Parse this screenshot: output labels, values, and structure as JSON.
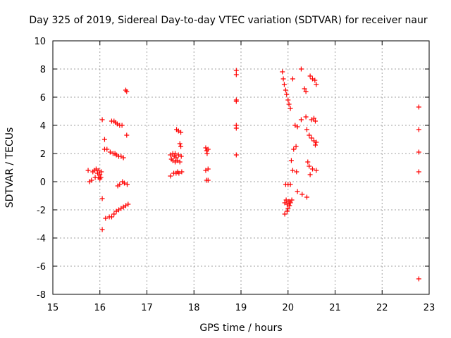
{
  "chart_data": {
    "type": "scatter",
    "title": "Day 325 of 2019, Sidereal Day-to-day VTEC variation (SDTVAR) for receiver naur",
    "xlabel": "GPS time / hours",
    "ylabel": "SDTVAR / TECUs",
    "xlim": [
      15,
      23
    ],
    "ylim": [
      -8,
      10
    ],
    "xticks": [
      "15",
      "16",
      "17",
      "18",
      "19",
      "20",
      "21",
      "22",
      "23"
    ],
    "yticks": [
      "-8",
      "-6",
      "-4",
      "-2",
      "0",
      "2",
      "4",
      "6",
      "8",
      "10"
    ],
    "grid": true,
    "marker": "+",
    "color": "#ff0000",
    "series": [
      {
        "name": "SDTVAR",
        "points": [
          [
            15.75,
            0.8
          ],
          [
            15.78,
            0.0
          ],
          [
            15.82,
            0.1
          ],
          [
            15.85,
            0.7
          ],
          [
            15.88,
            0.8
          ],
          [
            15.9,
            0.3
          ],
          [
            15.92,
            0.9
          ],
          [
            15.95,
            0.6
          ],
          [
            15.97,
            0.3
          ],
          [
            15.98,
            0.8
          ],
          [
            16.0,
            0.5
          ],
          [
            16.0,
            0.2
          ],
          [
            16.02,
            0.3
          ],
          [
            16.03,
            0.7
          ],
          [
            16.05,
            4.4
          ],
          [
            16.05,
            -1.2
          ],
          [
            16.05,
            -3.4
          ],
          [
            16.1,
            3.0
          ],
          [
            16.1,
            2.3
          ],
          [
            16.12,
            -2.6
          ],
          [
            16.15,
            2.3
          ],
          [
            16.2,
            -2.5
          ],
          [
            16.22,
            2.1
          ],
          [
            16.25,
            4.3
          ],
          [
            16.25,
            -2.5
          ],
          [
            16.28,
            2.0
          ],
          [
            16.3,
            4.3
          ],
          [
            16.3,
            -2.3
          ],
          [
            16.32,
            2.0
          ],
          [
            16.33,
            4.2
          ],
          [
            16.35,
            1.9
          ],
          [
            16.35,
            -2.1
          ],
          [
            16.37,
            4.1
          ],
          [
            16.38,
            -0.3
          ],
          [
            16.4,
            -2.0
          ],
          [
            16.4,
            1.8
          ],
          [
            16.42,
            4.0
          ],
          [
            16.42,
            -0.2
          ],
          [
            16.45,
            1.8
          ],
          [
            16.45,
            -1.9
          ],
          [
            16.47,
            4.0
          ],
          [
            16.48,
            0.0
          ],
          [
            16.5,
            1.7
          ],
          [
            16.5,
            -1.8
          ],
          [
            16.52,
            -0.1
          ],
          [
            16.55,
            -1.7
          ],
          [
            16.55,
            6.5
          ],
          [
            16.57,
            6.4
          ],
          [
            16.57,
            3.3
          ],
          [
            16.58,
            -0.2
          ],
          [
            16.6,
            -1.6
          ],
          [
            17.5,
            0.4
          ],
          [
            17.5,
            1.9
          ],
          [
            17.52,
            1.6
          ],
          [
            17.55,
            2.0
          ],
          [
            17.55,
            1.5
          ],
          [
            17.57,
            0.6
          ],
          [
            17.58,
            1.8
          ],
          [
            17.6,
            1.4
          ],
          [
            17.6,
            2.0
          ],
          [
            17.62,
            0.6
          ],
          [
            17.62,
            1.7
          ],
          [
            17.63,
            3.7
          ],
          [
            17.65,
            1.5
          ],
          [
            17.65,
            0.7
          ],
          [
            17.67,
            3.6
          ],
          [
            17.67,
            1.9
          ],
          [
            17.68,
            0.6
          ],
          [
            17.7,
            1.4
          ],
          [
            17.7,
            2.7
          ],
          [
            17.72,
            3.5
          ],
          [
            17.72,
            2.5
          ],
          [
            17.73,
            1.8
          ],
          [
            17.74,
            0.7
          ],
          [
            18.25,
            2.4
          ],
          [
            18.25,
            0.8
          ],
          [
            18.27,
            2.2
          ],
          [
            18.27,
            0.1
          ],
          [
            18.28,
            2.0
          ],
          [
            18.3,
            2.3
          ],
          [
            18.3,
            0.9
          ],
          [
            18.3,
            0.1
          ],
          [
            18.9,
            7.9
          ],
          [
            18.9,
            7.6
          ],
          [
            18.9,
            5.8
          ],
          [
            18.9,
            5.7
          ],
          [
            18.9,
            4.0
          ],
          [
            18.9,
            3.8
          ],
          [
            18.9,
            1.9
          ],
          [
            19.88,
            7.8
          ],
          [
            19.9,
            7.3
          ],
          [
            19.92,
            6.9
          ],
          [
            19.93,
            -1.5
          ],
          [
            19.93,
            -2.3
          ],
          [
            19.95,
            6.5
          ],
          [
            19.95,
            -0.2
          ],
          [
            19.96,
            -1.3
          ],
          [
            19.97,
            6.2
          ],
          [
            19.98,
            -2.1
          ],
          [
            19.98,
            -1.6
          ],
          [
            20.0,
            5.8
          ],
          [
            20.0,
            -0.2
          ],
          [
            20.0,
            -1.9
          ],
          [
            20.02,
            5.5
          ],
          [
            20.02,
            -1.4
          ],
          [
            20.03,
            -1.7
          ],
          [
            20.05,
            5.2
          ],
          [
            20.05,
            -0.2
          ],
          [
            20.05,
            -1.5
          ],
          [
            20.07,
            1.5
          ],
          [
            20.08,
            -1.3
          ],
          [
            20.1,
            7.3
          ],
          [
            20.1,
            0.8
          ],
          [
            20.12,
            2.3
          ],
          [
            20.15,
            4.0
          ],
          [
            20.17,
            2.5
          ],
          [
            20.18,
            0.7
          ],
          [
            20.2,
            3.9
          ],
          [
            20.2,
            -0.7
          ],
          [
            20.28,
            8.0
          ],
          [
            20.28,
            4.4
          ],
          [
            20.3,
            -0.9
          ],
          [
            20.35,
            6.6
          ],
          [
            20.38,
            6.4
          ],
          [
            20.38,
            4.6
          ],
          [
            20.4,
            3.7
          ],
          [
            20.4,
            -1.1
          ],
          [
            20.42,
            1.4
          ],
          [
            20.45,
            3.3
          ],
          [
            20.45,
            1.1
          ],
          [
            20.47,
            7.5
          ],
          [
            20.47,
            0.5
          ],
          [
            20.5,
            4.4
          ],
          [
            20.5,
            3.1
          ],
          [
            20.52,
            7.3
          ],
          [
            20.52,
            0.9
          ],
          [
            20.55,
            4.5
          ],
          [
            20.55,
            2.9
          ],
          [
            20.57,
            7.2
          ],
          [
            20.58,
            4.3
          ],
          [
            20.58,
            2.6
          ],
          [
            20.6,
            6.9
          ],
          [
            20.6,
            0.8
          ],
          [
            20.6,
            2.8
          ],
          [
            22.78,
            5.3
          ],
          [
            22.78,
            3.7
          ],
          [
            22.78,
            2.1
          ],
          [
            22.78,
            0.7
          ],
          [
            22.78,
            -6.9
          ]
        ]
      }
    ]
  }
}
